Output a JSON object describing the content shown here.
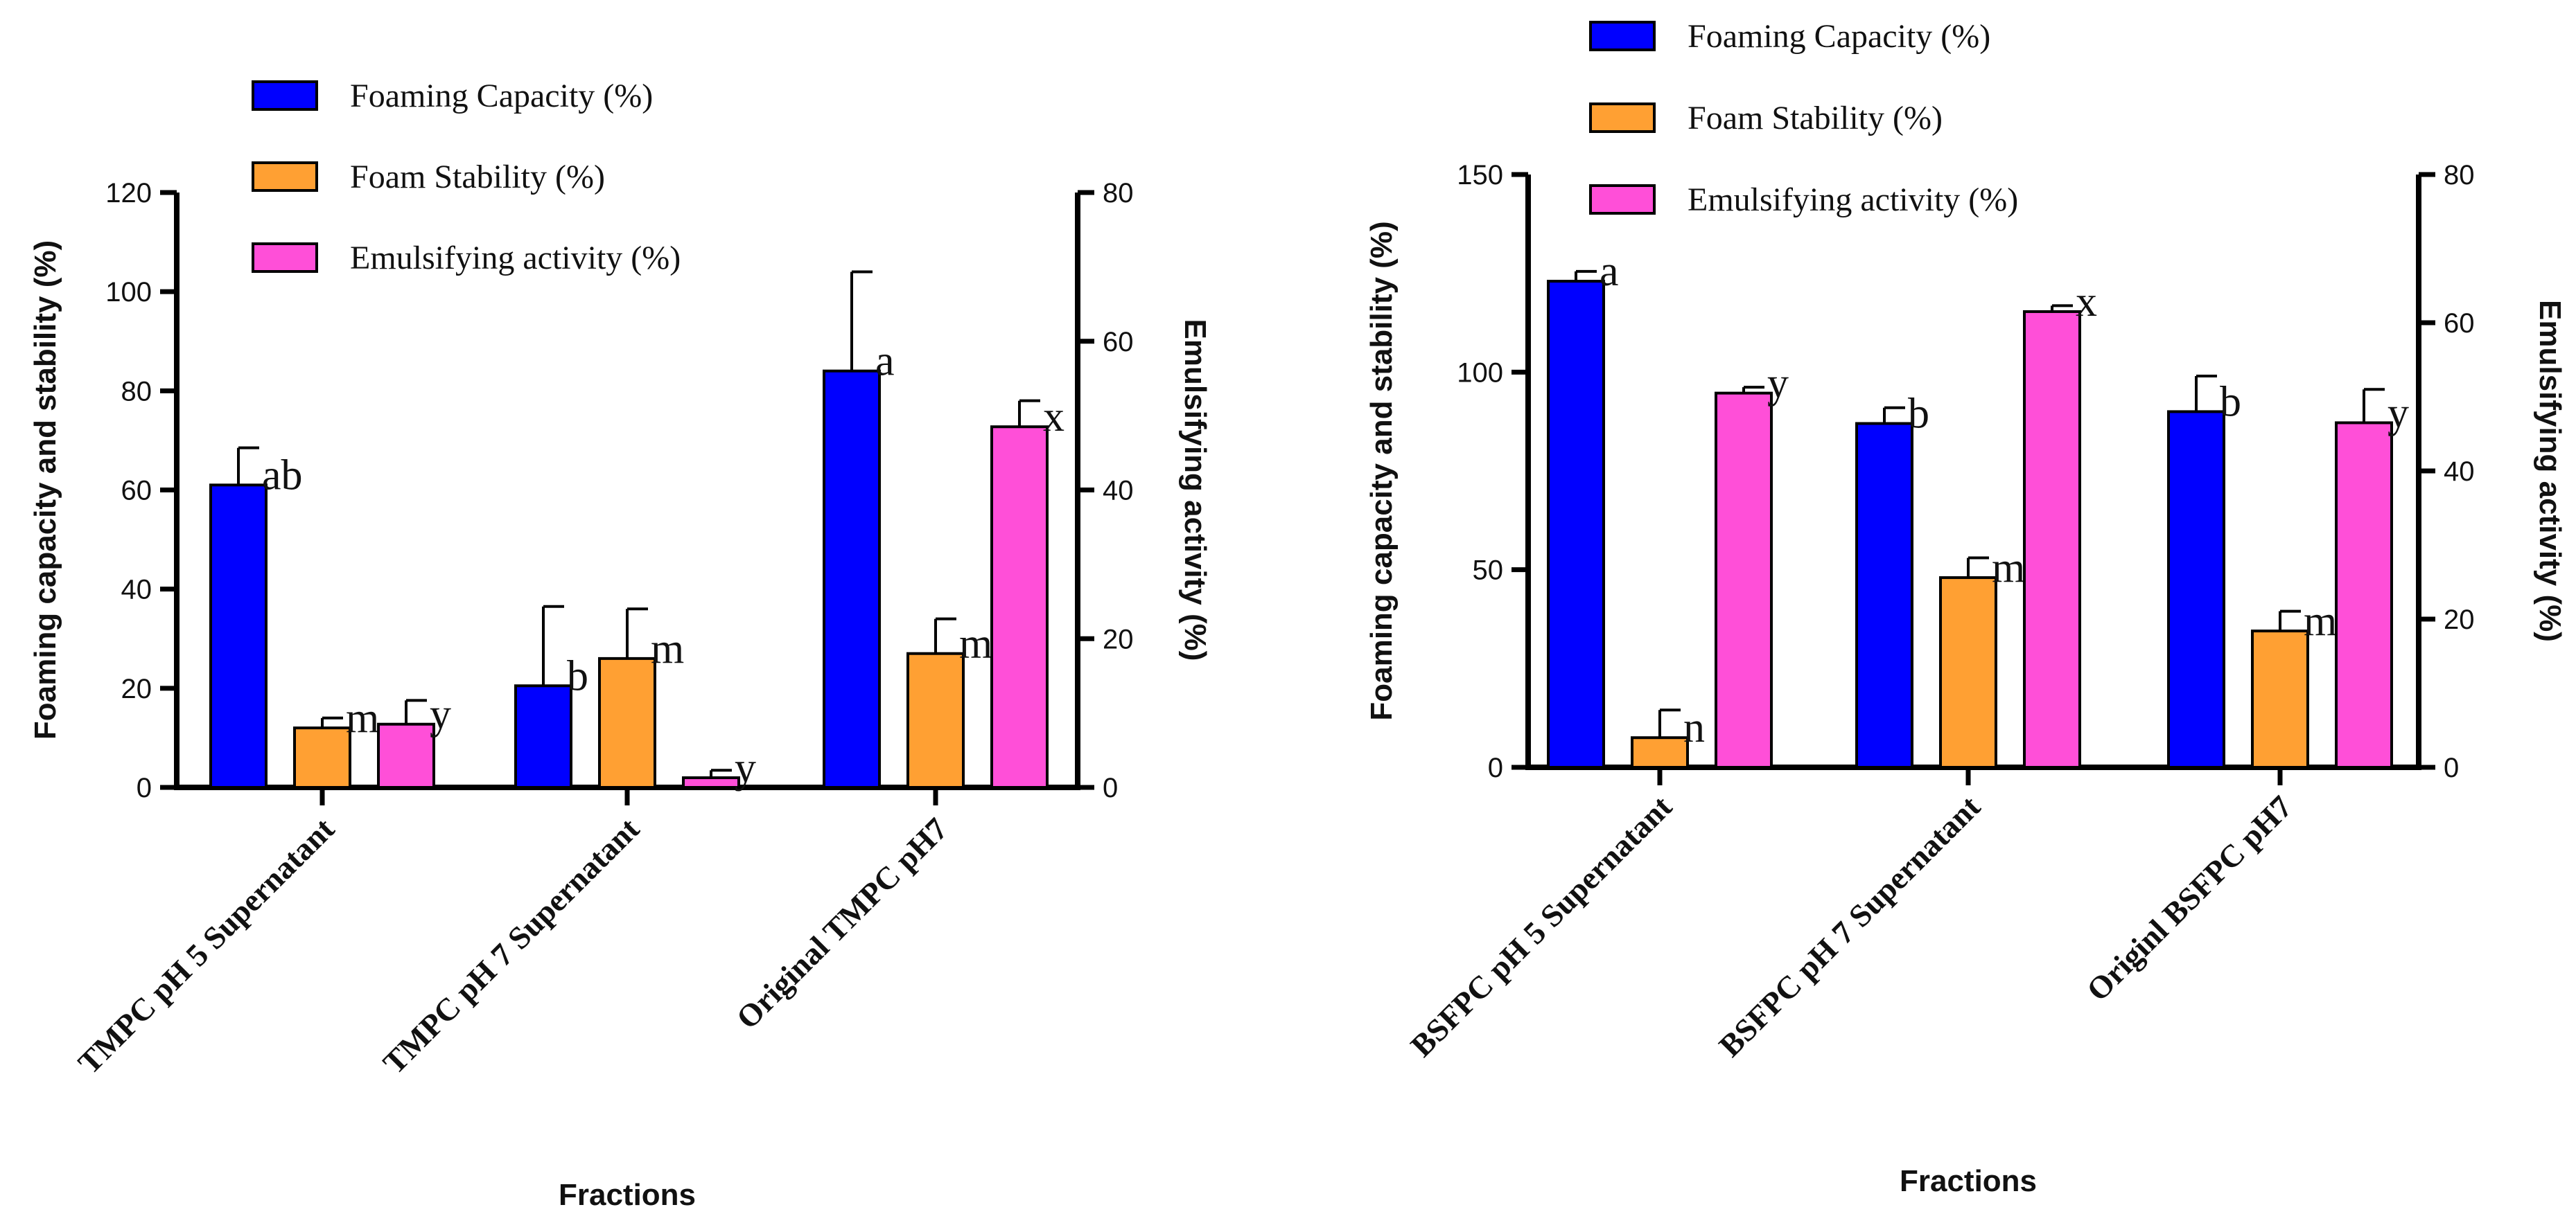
{
  "chart_data": [
    {
      "type": "bar",
      "xlabel": "Fractions",
      "ylabel": "Foaming capacity and stability (%)",
      "ylabel_right": "Emulsifying activity (%)",
      "ylim": [
        0,
        120
      ],
      "ylim_right": [
        0,
        80
      ],
      "yticks": [
        "0",
        "20",
        "40",
        "60",
        "80",
        "100",
        "120"
      ],
      "yticks_right": [
        "0",
        "20",
        "40",
        "60",
        "80"
      ],
      "legend_position": "top-left",
      "categories": [
        "TMPC pH 5 Supernatant",
        "TMPC pH 7 Supernatant",
        "Original TMPC pH7"
      ],
      "series": [
        {
          "name": "Foaming Capacity (%)",
          "color": "#0000FF",
          "axis": "left",
          "values": [
            61,
            20.5,
            84
          ],
          "errors": [
            7.5,
            16,
            20
          ],
          "labels": [
            "ab",
            "b",
            "a"
          ]
        },
        {
          "name": "Foam Stability (%)",
          "color": "#FFA033",
          "axis": "left",
          "values": [
            12,
            26,
            27
          ],
          "errors": [
            2,
            10,
            7
          ],
          "labels": [
            "m",
            "m",
            "m"
          ]
        },
        {
          "name": "Emulsifying activity (%)",
          "color": "#FF4FD8",
          "axis": "right",
          "values": [
            8.5,
            1.3,
            48.5
          ],
          "errors": [
            3.2,
            1.0,
            3.5
          ],
          "labels": [
            "y",
            "y",
            "x"
          ]
        }
      ]
    },
    {
      "type": "bar",
      "xlabel": "Fractions",
      "ylabel": "Foaming capacity and stability (%)",
      "ylabel_right": "Emulsifying activity (%)",
      "ylim": [
        0,
        150
      ],
      "ylim_right": [
        0,
        80
      ],
      "yticks": [
        "0",
        "50",
        "100",
        "150"
      ],
      "yticks_right": [
        "0",
        "20",
        "40",
        "60",
        "80"
      ],
      "legend_position": "top",
      "categories": [
        "BSFPC pH 5 Supernatant",
        "BSFPC pH 7 Supernatant",
        "Originl BSFPC pH7"
      ],
      "series": [
        {
          "name": "Foaming Capacity (%)",
          "color": "#0000FF",
          "axis": "left",
          "values": [
            123,
            87,
            90
          ],
          "errors": [
            2.5,
            4,
            9
          ],
          "labels": [
            "a",
            "b",
            "b"
          ]
        },
        {
          "name": "Foam Stability (%)",
          "color": "#FFA033",
          "axis": "left",
          "values": [
            7.5,
            48,
            34.5
          ],
          "errors": [
            7,
            5,
            5
          ],
          "labels": [
            "n",
            "m",
            "m"
          ]
        },
        {
          "name": "Emulsifying activity (%)",
          "color": "#FF4FD8",
          "axis": "right",
          "values": [
            50.5,
            61.5,
            46.5
          ],
          "errors": [
            0.8,
            0.8,
            4.5
          ],
          "labels": [
            "y",
            "x",
            "y"
          ]
        }
      ]
    }
  ]
}
